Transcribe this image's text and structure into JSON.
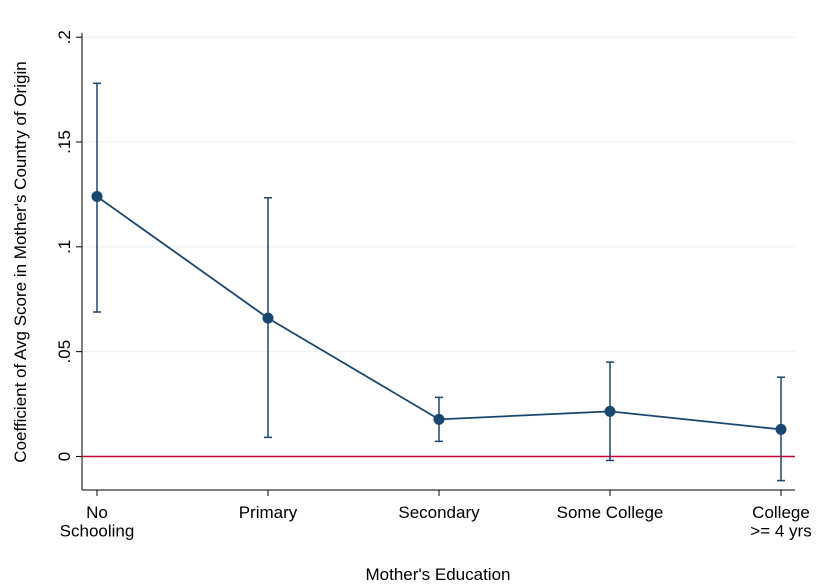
{
  "chart_data": {
    "type": "line",
    "x_label": "Mother's Education",
    "y_label": "Coefficient of Avg Score in Mother's Country of Origin",
    "categories": [
      "No\nSchooling",
      "Primary",
      "Secondary",
      "Some College",
      "College\n>= 4 yrs"
    ],
    "series": [
      {
        "color": "#1a476f",
        "values": [
          0.124,
          0.066,
          0.0177,
          0.0215,
          0.0129
        ],
        "ci_low": [
          0.0689,
          0.0091,
          0.0072,
          -0.0019,
          -0.0115
        ],
        "ci_high": [
          0.178,
          0.1234,
          0.0282,
          0.045,
          0.0378
        ]
      }
    ],
    "ylim": [
      -0.016,
      0.202
    ],
    "yticks": [
      0,
      {
        "value": 0.05,
        "label": ".05"
      },
      {
        "value": 0.1,
        "label": ".1"
      },
      {
        "value": 0.15,
        "label": ".15"
      },
      {
        "value": 0.2,
        "label": ".2"
      }
    ],
    "grid": true,
    "reference_line": {
      "value": 0,
      "color": "#c10534"
    }
  }
}
